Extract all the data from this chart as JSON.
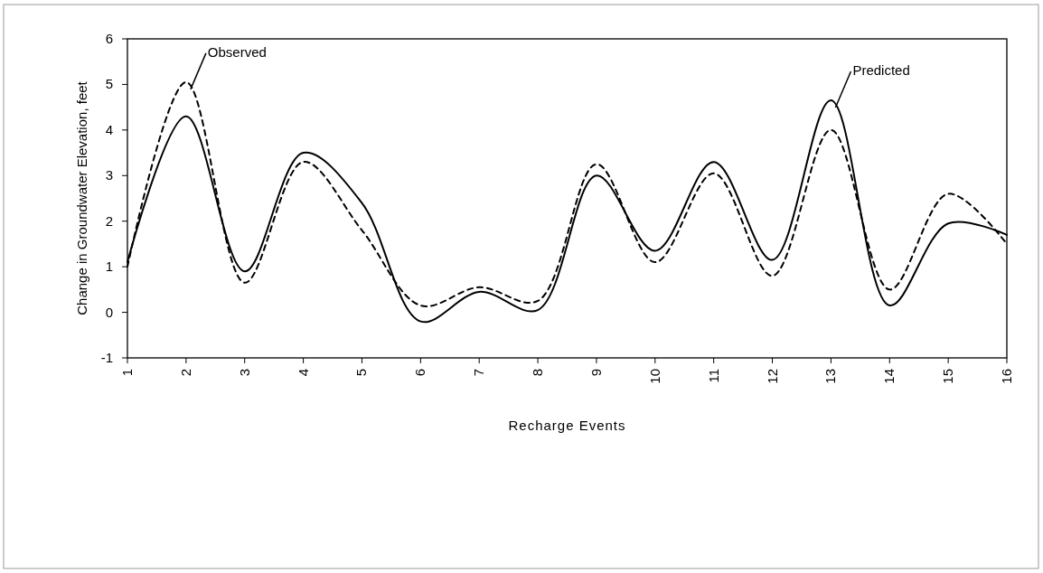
{
  "chart_data": {
    "type": "line",
    "xlabel": "Recharge Events",
    "ylabel": "Change in Groundwater Elevation, feet",
    "x": [
      1,
      2,
      3,
      4,
      5,
      6,
      7,
      8,
      9,
      10,
      11,
      12,
      13,
      14,
      15,
      16
    ],
    "xlim": [
      1,
      16
    ],
    "xticks": [
      1,
      2,
      3,
      4,
      5,
      6,
      7,
      8,
      9,
      10,
      11,
      12,
      13,
      14,
      15,
      16
    ],
    "ylim": [
      -1,
      6
    ],
    "yticks": [
      -1,
      0,
      1,
      2,
      3,
      4,
      5,
      6
    ],
    "grid": false,
    "marker": "none",
    "series": [
      {
        "name": "Observed",
        "color": "#000000",
        "line_style": "dashed",
        "values": [
          1.0,
          5.05,
          0.65,
          3.3,
          1.8,
          0.15,
          0.55,
          0.25,
          3.25,
          1.1,
          3.05,
          0.8,
          4.0,
          0.5,
          2.6,
          1.5
        ]
      },
      {
        "name": "Predicted",
        "color": "#000000",
        "line_style": "solid",
        "values": [
          1.1,
          4.3,
          0.9,
          3.5,
          2.4,
          -0.2,
          0.45,
          0.05,
          3.0,
          1.35,
          3.3,
          1.15,
          4.65,
          0.15,
          1.95,
          1.7
        ]
      }
    ]
  }
}
